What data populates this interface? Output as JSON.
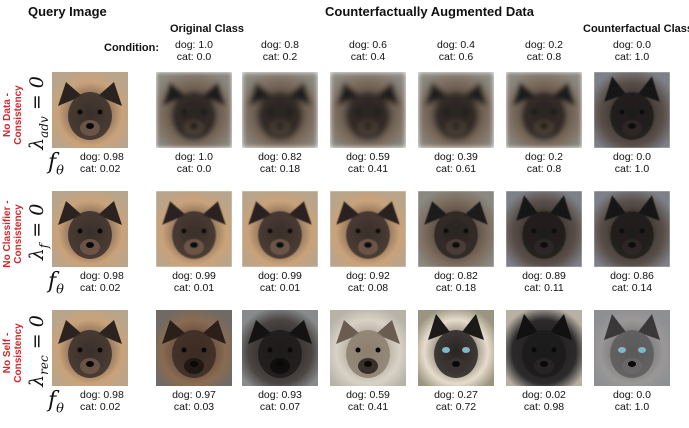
{
  "headers": {
    "query": "Query Image",
    "augmented": "Counterfactually Augmented Data",
    "original_class": "Original Class",
    "counterfactual_class": "Counterfactual Class",
    "condition_label": "Condition:"
  },
  "conditions": [
    {
      "dog": "dog: 1.0",
      "cat": "cat: 0.0"
    },
    {
      "dog": "dog: 0.8",
      "cat": "cat: 0.2"
    },
    {
      "dog": "dog: 0.6",
      "cat": "cat: 0.4"
    },
    {
      "dog": "dog: 0.4",
      "cat": "cat: 0.6"
    },
    {
      "dog": "dog: 0.2",
      "cat": "cat: 0.8"
    },
    {
      "dog": "dog: 0.0",
      "cat": "cat: 1.0"
    }
  ],
  "rows": [
    {
      "label_lines": [
        "No Data -",
        "Consistency"
      ],
      "lambda_symbol": "λ",
      "lambda_sub": "adv",
      "lambda_rest": " = 0",
      "query_scores": {
        "dog": "dog: 0.98",
        "cat": "cat: 0.02"
      },
      "scores": [
        {
          "dog": "dog: 1.0",
          "cat": "cat: 0.0"
        },
        {
          "dog": "dog: 0.82",
          "cat": "cat: 0.18"
        },
        {
          "dog": "dog: 0.59",
          "cat": "cat: 0.41"
        },
        {
          "dog": "dog: 0.39",
          "cat": "cat: 0.61"
        },
        {
          "dog": "dog: 0.2",
          "cat": "cat: 0.8"
        },
        {
          "dog": "dog: 0.0",
          "cat": "cat: 1.0"
        }
      ]
    },
    {
      "label_lines": [
        "No Classifier -",
        "Consistency"
      ],
      "lambda_symbol": "λ",
      "lambda_sub": "f",
      "lambda_rest": " = 0",
      "query_scores": {
        "dog": "dog: 0.98",
        "cat": "cat: 0.02"
      },
      "scores": [
        {
          "dog": "dog: 0.99",
          "cat": "cat: 0.01"
        },
        {
          "dog": "dog: 0.99",
          "cat": "cat: 0.01"
        },
        {
          "dog": "dog: 0.92",
          "cat": "cat: 0.08"
        },
        {
          "dog": "dog: 0.82",
          "cat": "cat: 0.18"
        },
        {
          "dog": "dog: 0.89",
          "cat": "cat: 0.11"
        },
        {
          "dog": "dog: 0.86",
          "cat": "cat: 0.14"
        }
      ]
    },
    {
      "label_lines": [
        "No Self -",
        "Consistency"
      ],
      "lambda_symbol": "λ",
      "lambda_sub": "rec",
      "lambda_rest": " = 0",
      "query_scores": {
        "dog": "dog: 0.98",
        "cat": "cat: 0.02"
      },
      "scores": [
        {
          "dog": "dog: 0.97",
          "cat": "cat: 0.03"
        },
        {
          "dog": "dog: 0.93",
          "cat": "cat: 0.07"
        },
        {
          "dog": "dog: 0.59",
          "cat": "cat: 0.41"
        },
        {
          "dog": "dog: 0.27",
          "cat": "cat: 0.72"
        },
        {
          "dog": "dog: 0.02",
          "cat": "cat: 0.98"
        },
        {
          "dog": "dog: 0.0",
          "cat": "cat: 1.0"
        }
      ]
    }
  ],
  "classifier_symbol": "f",
  "classifier_sub": "θ"
}
